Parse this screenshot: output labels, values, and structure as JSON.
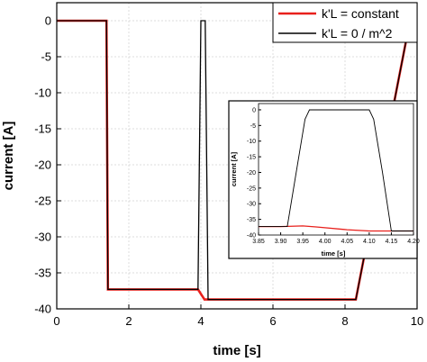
{
  "chart_data": [
    {
      "type": "line",
      "xlabel": "time [s]",
      "ylabel": "current [A]",
      "xlim": [
        0,
        10
      ],
      "ylim": [
        -40,
        2.5
      ],
      "xticks": [
        "0",
        "2",
        "4",
        "6",
        "8",
        "10"
      ],
      "yticks": [
        "0",
        "-5",
        "-10",
        "-15",
        "-20",
        "-25",
        "-30",
        "-35",
        "-40"
      ],
      "grid": true,
      "legend_position": "top-right",
      "series": [
        {
          "name": "k'L = constant",
          "color": "#e8201c",
          "x": [
            0,
            1.38,
            1.42,
            3.92,
            4.1,
            8.3,
            9.9
          ],
          "y": [
            0,
            0,
            -37.3,
            -37.3,
            -38.7,
            -38.7,
            2.5
          ]
        },
        {
          "name": "k'L = 0 / m^2",
          "color": "#000000",
          "x": [
            0,
            1.38,
            1.42,
            3.92,
            4.0,
            4.12,
            4.2,
            8.3,
            9.9
          ],
          "y": [
            0,
            0,
            -37.3,
            -37.3,
            0,
            0,
            -38.7,
            -38.7,
            2.5
          ]
        }
      ]
    },
    {
      "type": "line",
      "xlabel": "time [s]",
      "ylabel": "current [A]",
      "xlim": [
        3.85,
        4.2
      ],
      "ylim": [
        -40,
        2
      ],
      "xticks": [
        "3.85",
        "3.90",
        "3.95",
        "4.00",
        "4.05",
        "4.10",
        "4.15",
        "4.20"
      ],
      "yticks": [
        "0",
        "-5",
        "-10",
        "-15",
        "-20",
        "-25",
        "-30",
        "-35",
        "-40"
      ],
      "grid": false,
      "series": [
        {
          "name": "k'L = constant",
          "color": "#e8201c",
          "x": [
            3.85,
            3.9,
            3.95,
            3.98,
            4.05,
            4.1,
            4.2
          ],
          "y": [
            -37.3,
            -37.3,
            -37.1,
            -37.4,
            -38.3,
            -38.7,
            -38.7
          ]
        },
        {
          "name": "k'L = 0 / m^2",
          "color": "#000000",
          "x": [
            3.85,
            3.915,
            3.935,
            3.955,
            3.965,
            4.1,
            4.11,
            4.13,
            4.15,
            4.2
          ],
          "y": [
            -37.3,
            -37.3,
            -20,
            -3,
            0,
            0,
            -3,
            -20,
            -38.7,
            -38.7
          ]
        }
      ]
    }
  ]
}
